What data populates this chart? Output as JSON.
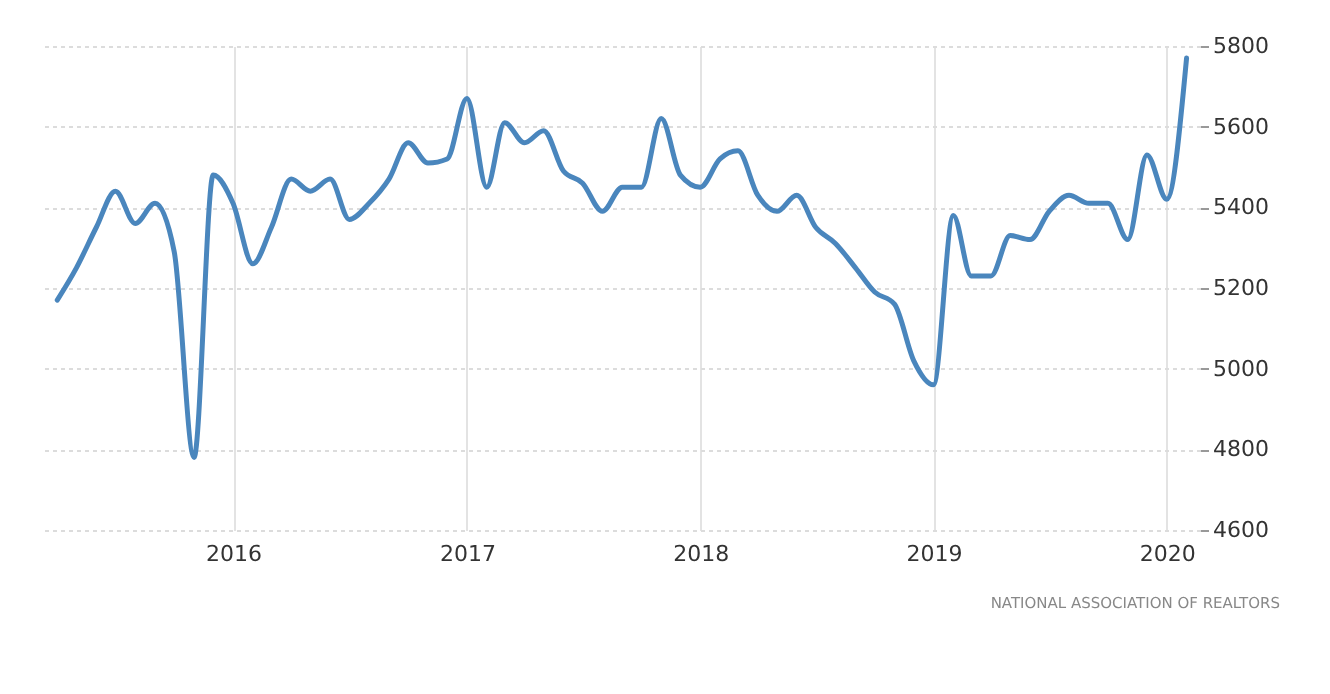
{
  "chart_data": {
    "type": "line",
    "x": [
      "2015-04",
      "2015-05",
      "2015-06",
      "2015-07",
      "2015-08",
      "2015-09",
      "2015-10",
      "2015-11",
      "2015-12",
      "2016-01",
      "2016-02",
      "2016-03",
      "2016-04",
      "2016-05",
      "2016-06",
      "2016-07",
      "2016-08",
      "2016-09",
      "2016-10",
      "2016-11",
      "2016-12",
      "2017-01",
      "2017-02",
      "2017-03",
      "2017-04",
      "2017-05",
      "2017-06",
      "2017-07",
      "2017-08",
      "2017-09",
      "2017-10",
      "2017-11",
      "2017-12",
      "2018-01",
      "2018-02",
      "2018-03",
      "2018-04",
      "2018-05",
      "2018-06",
      "2018-07",
      "2018-08",
      "2018-09",
      "2018-10",
      "2018-11",
      "2018-12",
      "2019-01",
      "2019-02",
      "2019-03",
      "2019-04",
      "2019-05",
      "2019-06",
      "2019-07",
      "2019-08",
      "2019-09",
      "2019-10",
      "2019-11",
      "2019-12",
      "2020-01",
      "2020-02"
    ],
    "series": [
      {
        "color": "#4a86bd",
        "values": [
          5170,
          5250,
          5350,
          5440,
          5360,
          5410,
          5290,
          4780,
          5480,
          5410,
          5260,
          5350,
          5470,
          5440,
          5470,
          5370,
          5410,
          5470,
          5560,
          5510,
          5520,
          5670,
          5450,
          5610,
          5560,
          5590,
          5490,
          5460,
          5390,
          5450,
          5450,
          5620,
          5480,
          5450,
          5520,
          5540,
          5430,
          5390,
          5430,
          5350,
          5310,
          5250,
          5190,
          5160,
          5020,
          4960,
          5380,
          5230,
          5230,
          5330,
          5320,
          5390,
          5430,
          5410,
          5410,
          5320,
          5530,
          5420,
          5770
        ]
      }
    ],
    "xlim": [
      "2015-03-05",
      "2020-02-22"
    ],
    "xticks": [
      {
        "value": "2016-01",
        "label": "2016"
      },
      {
        "value": "2017-01",
        "label": "2017"
      },
      {
        "value": "2018-01",
        "label": "2018"
      },
      {
        "value": "2019-01",
        "label": "2019"
      },
      {
        "value": "2020-01",
        "label": "2020"
      }
    ],
    "ylim": [
      4600,
      5800
    ],
    "yticks": [
      4600,
      4800,
      5000,
      5200,
      5400,
      5600,
      5800
    ],
    "grid": true,
    "marker": "none",
    "line_style": "solid",
    "annotations": [
      "NATIONAL ASSOCIATION OF REALTORS"
    ]
  }
}
